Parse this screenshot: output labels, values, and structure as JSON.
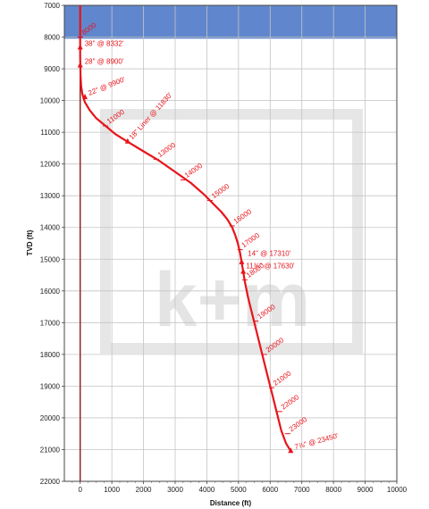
{
  "chart_data": {
    "type": "line",
    "xlabel": "Distance (ft)",
    "ylabel": "TVD (ft)",
    "xlim": [
      -500,
      10000
    ],
    "ylim": [
      7000,
      22000
    ],
    "y_inverted": true,
    "grid": true,
    "x_ticks": [
      0,
      1000,
      2000,
      3000,
      4000,
      5000,
      6000,
      7000,
      8000,
      9000,
      10000
    ],
    "y_ticks": [
      7000,
      8000,
      9000,
      10000,
      11000,
      12000,
      13000,
      14000,
      15000,
      16000,
      17000,
      18000,
      19000,
      20000,
      21000,
      22000
    ],
    "shaded_band": {
      "y_from": 7000,
      "y_to": 8050,
      "color": "#4472c4"
    },
    "vertical_reference": {
      "x": 0,
      "color": "#8b1a1a"
    },
    "trajectory": {
      "color": "#e8141b",
      "x": [
        0,
        0,
        10,
        30,
        70,
        150,
        300,
        500,
        800,
        1100,
        1500,
        2000,
        2500,
        3000,
        3500,
        3900,
        4200,
        4450,
        4650,
        4800,
        4900,
        4980,
        5050,
        5100,
        5150,
        5200,
        5300,
        5450,
        5600,
        5750,
        5900,
        6050,
        6200,
        6350,
        6500,
        6650
      ],
      "y": [
        7000,
        8600,
        9200,
        9550,
        9800,
        10050,
        10300,
        10550,
        10800,
        11050,
        11300,
        11600,
        11900,
        12250,
        12600,
        12950,
        13250,
        13500,
        13750,
        14000,
        14250,
        14500,
        14800,
        15100,
        15400,
        15700,
        16200,
        16800,
        17400,
        18000,
        18600,
        19200,
        19800,
        20400,
        20800,
        21050
      ]
    },
    "md_labels": [
      {
        "text": "8000",
        "x": 0,
        "y": 8000
      },
      {
        "text": "11000",
        "x": 800,
        "y": 10800
      },
      {
        "text": "13000",
        "x": 2400,
        "y": 11850
      },
      {
        "text": "14000",
        "x": 3250,
        "y": 12500
      },
      {
        "text": "15000",
        "x": 4100,
        "y": 13150
      },
      {
        "text": "16000",
        "x": 4800,
        "y": 13950
      },
      {
        "text": "17000",
        "x": 5050,
        "y": 14700
      },
      {
        "text": "18000",
        "x": 5200,
        "y": 15650
      },
      {
        "text": "19000",
        "x": 5550,
        "y": 16950
      },
      {
        "text": "20000",
        "x": 5820,
        "y": 18000
      },
      {
        "text": "21000",
        "x": 6050,
        "y": 19050
      },
      {
        "text": "22000",
        "x": 6300,
        "y": 19800
      },
      {
        "text": "23000",
        "x": 6550,
        "y": 20500
      }
    ],
    "casing_labels": [
      {
        "text": "38\" @ 8332'",
        "x": 0,
        "y": 8332,
        "angle": 0
      },
      {
        "text": "28\" @ 8900'",
        "x": 0,
        "y": 8900,
        "angle": 0
      },
      {
        "text": "22\" @ 9900'",
        "x": 150,
        "y": 9900,
        "angle": -22
      },
      {
        "text": "18\" Liner @ 11830'",
        "x": 1500,
        "y": 11300,
        "angle": -48
      },
      {
        "text": "14\" @ 17310'",
        "x": 5150,
        "y": 14950,
        "angle": 0
      },
      {
        "text": "11¾\" @ 17630'",
        "x": 5100,
        "y": 15350,
        "angle": 0
      },
      {
        "text": "7⅞\" @ 23450'",
        "x": 6650,
        "y": 21050,
        "angle": -15
      }
    ],
    "casing_marks": [
      {
        "x": 0,
        "y": 8332
      },
      {
        "x": 0,
        "y": 8900
      },
      {
        "x": 150,
        "y": 9900
      },
      {
        "x": 1500,
        "y": 11300
      },
      {
        "x": 5100,
        "y": 15100
      },
      {
        "x": 5150,
        "y": 15400
      },
      {
        "x": 6650,
        "y": 21050
      }
    ]
  },
  "watermark": {
    "text": "k+m"
  }
}
